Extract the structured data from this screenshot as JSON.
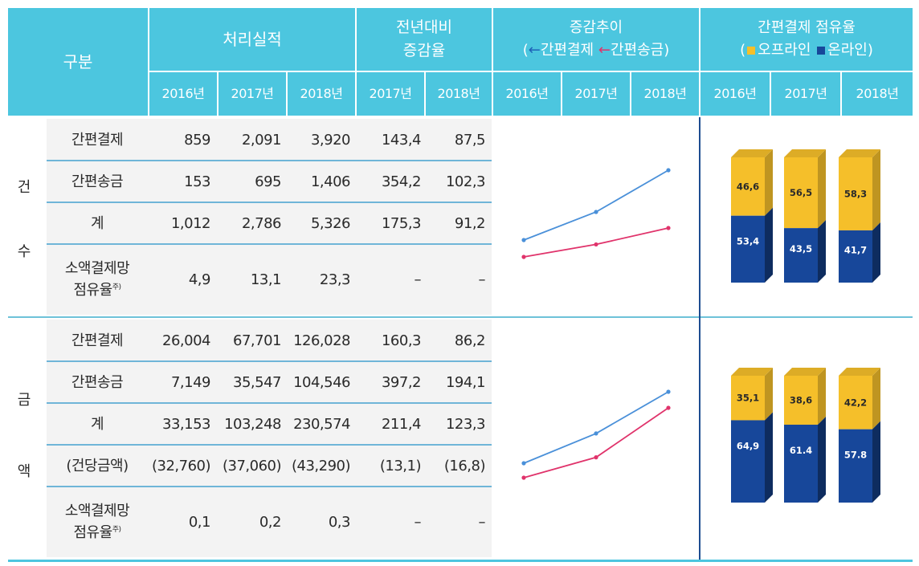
{
  "header": {
    "category": "구분",
    "performance": "처리실적",
    "yoy_line1": "전년대비",
    "yoy_line2": "증감율",
    "trend_title": "증감추이",
    "trend_legend_open": "(",
    "trend_legend_easy_pay": "간편결제",
    "trend_legend_easy_transfer": "간편송금",
    "trend_legend_close": ")",
    "share_title": "간편결제 점유율",
    "share_legend_open": "(",
    "share_legend_offline": "오프라인",
    "share_legend_online": "온라인",
    "share_legend_close": ")",
    "years": [
      "2016년",
      "2017년",
      "2018년",
      "2017년",
      "2018년",
      "2016년",
      "2017년",
      "2018년",
      "2016년",
      "2017년",
      "2018년"
    ]
  },
  "sections": [
    {
      "label_chars": [
        "건",
        "수"
      ],
      "rows": [
        {
          "label": "간편결제",
          "values": [
            "859",
            "2,091",
            "3,920",
            "143,4",
            "87,5"
          ]
        },
        {
          "label": "간편송금",
          "values": [
            "153",
            "695",
            "1,406",
            "354,2",
            "102,3"
          ]
        },
        {
          "label": "계",
          "values": [
            "1,012",
            "2,786",
            "5,326",
            "175,3",
            "91,2"
          ]
        },
        {
          "label_line1": "소액결제망",
          "label_line2": "점유율",
          "note": "주)",
          "values": [
            "4,9",
            "13,1",
            "23,3",
            "–",
            "–"
          ]
        }
      ]
    },
    {
      "label_chars": [
        "금",
        "액"
      ],
      "rows": [
        {
          "label": "간편결제",
          "values": [
            "26,004",
            "67,701",
            "126,028",
            "160,3",
            "86,2"
          ]
        },
        {
          "label": "간편송금",
          "values": [
            "7,149",
            "35,547",
            "104,546",
            "397,2",
            "194,1"
          ]
        },
        {
          "label": "계",
          "values": [
            "33,153",
            "103,248",
            "230,574",
            "211,4",
            "123,3"
          ]
        },
        {
          "label": "(건당금액)",
          "values": [
            "(32,760)",
            "(37,060)",
            "(43,290)",
            "(13,1)",
            "(16,8)"
          ]
        },
        {
          "label_line1": "소액결제망",
          "label_line2": "점유율",
          "note": "주)",
          "values": [
            "0,1",
            "0,2",
            "0,3",
            "–",
            "–"
          ]
        }
      ]
    }
  ],
  "colors": {
    "header_bg": "#4cc6df",
    "easy_pay_line": "#4a90d9",
    "easy_transfer_line": "#e0336b",
    "offline": "#f5bf2a",
    "online": "#17479a"
  },
  "chart_data": [
    {
      "type": "line",
      "title": "증감추이 (건수)",
      "x": [
        "2016",
        "2017",
        "2018"
      ],
      "series": [
        {
          "name": "간편결제",
          "values": [
            859,
            2091,
            3920
          ]
        },
        {
          "name": "간편송금",
          "values": [
            153,
            695,
            1406
          ]
        }
      ]
    },
    {
      "type": "line",
      "title": "증감추이 (금액)",
      "x": [
        "2016",
        "2017",
        "2018"
      ],
      "series": [
        {
          "name": "간편결제",
          "values": [
            26004,
            67701,
            126028
          ]
        },
        {
          "name": "간편송금",
          "values": [
            7149,
            35547,
            104546
          ]
        }
      ]
    },
    {
      "type": "bar",
      "stacked": true,
      "title": "간편결제 점유율 (건수)",
      "categories": [
        "2016",
        "2017",
        "2018"
      ],
      "series": [
        {
          "name": "오프라인",
          "values": [
            46.6,
            56.5,
            58.3
          ],
          "labels": [
            "46,6",
            "56,5",
            "58,3"
          ]
        },
        {
          "name": "온라인",
          "values": [
            53.4,
            43.5,
            41.7
          ],
          "labels": [
            "53,4",
            "43,5",
            "41,7"
          ]
        }
      ]
    },
    {
      "type": "bar",
      "stacked": true,
      "title": "간편결제 점유율 (금액)",
      "categories": [
        "2016",
        "2017",
        "2018"
      ],
      "series": [
        {
          "name": "오프라인",
          "values": [
            35.1,
            38.6,
            42.2
          ],
          "labels": [
            "35,1",
            "38,6",
            "42,2"
          ]
        },
        {
          "name": "온라인",
          "values": [
            64.9,
            61.4,
            57.8
          ],
          "labels": [
            "64,9",
            "61.4",
            "57.8"
          ]
        }
      ]
    }
  ]
}
